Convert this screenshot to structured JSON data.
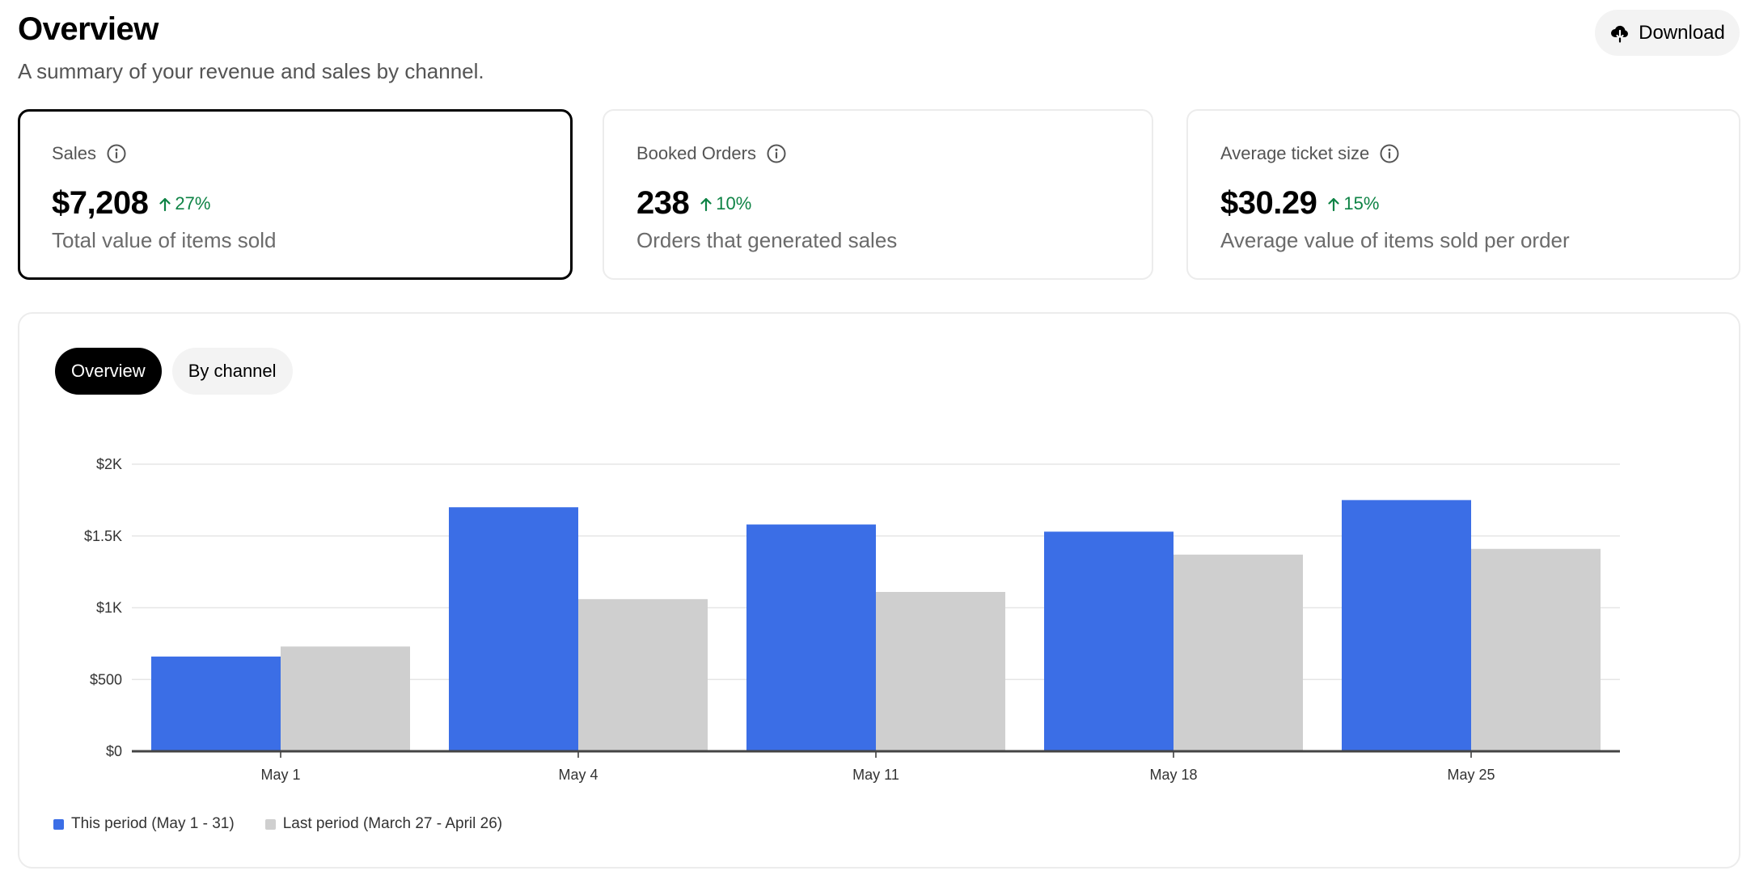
{
  "header": {
    "title": "Overview",
    "subtitle": "A summary of your revenue and sales by channel.",
    "download_label": "Download"
  },
  "cards": [
    {
      "label": "Sales",
      "value": "$7,208",
      "delta": "27%",
      "description": "Total value of items sold",
      "selected": true
    },
    {
      "label": "Booked Orders",
      "value": "238",
      "delta": "10%",
      "description": "Orders that generated sales",
      "selected": false
    },
    {
      "label": "Average ticket size",
      "value": "$30.29",
      "delta": "15%",
      "description": "Average value of items sold per order",
      "selected": false
    }
  ],
  "tabs": [
    {
      "label": "Overview",
      "active": true
    },
    {
      "label": "By channel",
      "active": false
    }
  ],
  "colors": {
    "this_period": "#3b6ee6",
    "last_period": "#cfcfcf",
    "positive_delta": "#0e8345",
    "selected_border": "#000000"
  },
  "icons": {
    "download": "cloud-download-icon",
    "info": "info-icon",
    "delta": "arrow-up-icon"
  },
  "chart_data": {
    "type": "bar",
    "categories": [
      "May 1",
      "May 4",
      "May 11",
      "May 18",
      "May 25"
    ],
    "series": [
      {
        "name": "This period (May 1 - 31)",
        "values": [
          660,
          1700,
          1580,
          1530,
          1750
        ]
      },
      {
        "name": "Last period (March 27 - April 26)",
        "values": [
          730,
          1060,
          1110,
          1370,
          1410
        ]
      }
    ],
    "yticks": [
      0,
      500,
      1000,
      1500,
      2000
    ],
    "ytick_labels": [
      "$0",
      "$500",
      "$1K",
      "$1.5K",
      "$2K"
    ],
    "ylim": [
      0,
      2000
    ],
    "grid": true,
    "legend": "bottom-left"
  }
}
